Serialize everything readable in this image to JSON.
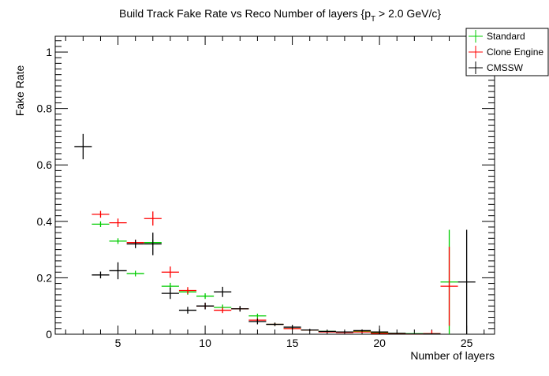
{
  "chart_data": {
    "type": "scatter",
    "title": "Build Track Fake Rate vs Reco Number of layers {p",
    "title_sub": "T",
    "title_tail": " > 2.0 GeV/c}",
    "xlabel": "Number of layers",
    "ylabel": "Fake Rate",
    "xlim": [
      1.4,
      26.6
    ],
    "ylim": [
      0,
      1.056
    ],
    "xticks": [
      5,
      10,
      15,
      20,
      25
    ],
    "yticks": [
      0,
      0.2,
      0.4,
      0.6,
      0.8,
      1
    ],
    "ytick_labels": [
      "0",
      "0.2",
      "0.4",
      "0.6",
      "0.8",
      "1"
    ],
    "grid": false,
    "legend_placement": "top-right",
    "series": [
      {
        "name": "Standard",
        "color": "#00cc00",
        "x": [
          4,
          5,
          6,
          7,
          8,
          9,
          10,
          11,
          12,
          13,
          14,
          15,
          16,
          17,
          18,
          19,
          20,
          21,
          22,
          23,
          24
        ],
        "y": [
          0.39,
          0.33,
          0.215,
          0.325,
          0.17,
          0.15,
          0.135,
          0.095,
          0.09,
          0.065,
          0.035,
          0.02,
          0.015,
          0.01,
          0.008,
          0.01,
          0.005,
          0.003,
          0.002,
          0.002,
          0.185
        ],
        "err": [
          0.01,
          0.01,
          0.01,
          0.01,
          0.012,
          0.01,
          0.01,
          0.01,
          0.008,
          0.008,
          0.005,
          0.004,
          0.003,
          0.003,
          0.002,
          0.003,
          0.002,
          0.001,
          0.001,
          0.001,
          0.185
        ]
      },
      {
        "name": "Clone Engine",
        "color": "#ff0000",
        "x": [
          4,
          5,
          6,
          7,
          8,
          9,
          10,
          11,
          12,
          13,
          14,
          15,
          16,
          17,
          18,
          19,
          20,
          21,
          22,
          23,
          24
        ],
        "y": [
          0.425,
          0.395,
          0.325,
          0.41,
          0.22,
          0.155,
          0.1,
          0.085,
          0.09,
          0.05,
          0.035,
          0.02,
          0.015,
          0.008,
          0.006,
          0.008,
          0.003,
          0.002,
          0.001,
          0.002,
          0.17
        ],
        "err": [
          0.012,
          0.015,
          0.01,
          0.025,
          0.02,
          0.012,
          0.01,
          0.01,
          0.008,
          0.007,
          0.005,
          0.004,
          0.003,
          0.003,
          0.002,
          0.003,
          0.002,
          0.001,
          0.001,
          0.012,
          0.14
        ]
      },
      {
        "name": "CMSSW",
        "color": "#000000",
        "x": [
          3,
          4,
          5,
          6,
          7,
          8,
          9,
          10,
          11,
          12,
          13,
          14,
          15,
          16,
          17,
          18,
          19,
          20,
          21,
          22,
          23,
          25
        ],
        "y": [
          0.665,
          0.21,
          0.225,
          0.32,
          0.32,
          0.145,
          0.085,
          0.1,
          0.15,
          0.09,
          0.045,
          0.035,
          0.025,
          0.015,
          0.01,
          0.008,
          0.013,
          0.008,
          0.003,
          0.001,
          0.001,
          0.185
        ],
        "err": [
          0.045,
          0.012,
          0.03,
          0.015,
          0.04,
          0.02,
          0.012,
          0.012,
          0.018,
          0.01,
          0.01,
          0.006,
          0.008,
          0.004,
          0.003,
          0.003,
          0.004,
          0.01,
          0.002,
          0.001,
          0.001,
          0.185
        ]
      }
    ]
  }
}
